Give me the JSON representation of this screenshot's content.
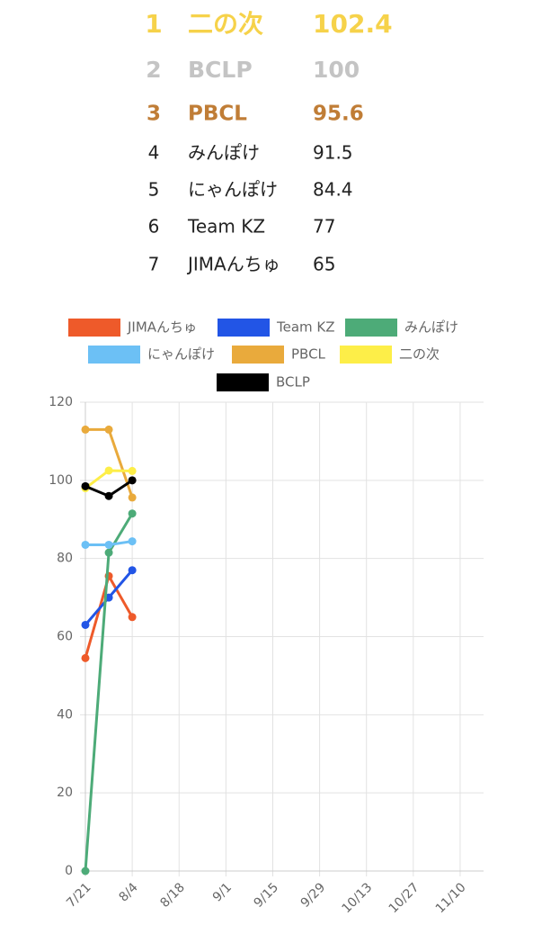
{
  "ranking": [
    {
      "rank": 1,
      "name": "二の次",
      "score": 102.4
    },
    {
      "rank": 2,
      "name": "BCLP",
      "score": 100
    },
    {
      "rank": 3,
      "name": "PBCL",
      "score": 95.6
    },
    {
      "rank": 4,
      "name": "みんぽけ",
      "score": 91.5
    },
    {
      "rank": 5,
      "name": "にゃんぽけ",
      "score": 84.4
    },
    {
      "rank": 6,
      "name": "Team KZ",
      "score": 77
    },
    {
      "rank": 7,
      "name": "JIMAんちゅ",
      "score": 65
    }
  ],
  "chart_data": {
    "type": "line",
    "x": [
      "7/21",
      "7/28",
      "8/4"
    ],
    "series": [
      {
        "name": "JIMAんちゅ",
        "color": "#ee5a2a",
        "values": [
          54.5,
          75.5,
          65
        ]
      },
      {
        "name": "Team KZ",
        "color": "#2255e6",
        "values": [
          63,
          70,
          77
        ]
      },
      {
        "name": "みんぽけ",
        "color": "#4dab78",
        "values": [
          0,
          81.5,
          91.5
        ]
      },
      {
        "name": "にゃんぽけ",
        "color": "#6cc0f5",
        "values": [
          83.5,
          83.5,
          84.4
        ]
      },
      {
        "name": "PBCL",
        "color": "#e9aa3c",
        "values": [
          113,
          113,
          95.6
        ]
      },
      {
        "name": "二の次",
        "color": "#fdee48",
        "values": [
          98,
          102.5,
          102.4
        ]
      },
      {
        "name": "BCLP",
        "color": "#000000",
        "values": [
          98.5,
          96,
          100
        ]
      }
    ],
    "xlim": [
      "7/21",
      "11/17"
    ],
    "xticks": [
      "7/21",
      "8/4",
      "8/18",
      "9/1",
      "9/15",
      "9/29",
      "10/13",
      "10/27",
      "11/10"
    ],
    "ylim": [
      0,
      120
    ],
    "yticks": [
      0,
      20,
      40,
      60,
      80,
      100,
      120
    ],
    "grid": true
  }
}
